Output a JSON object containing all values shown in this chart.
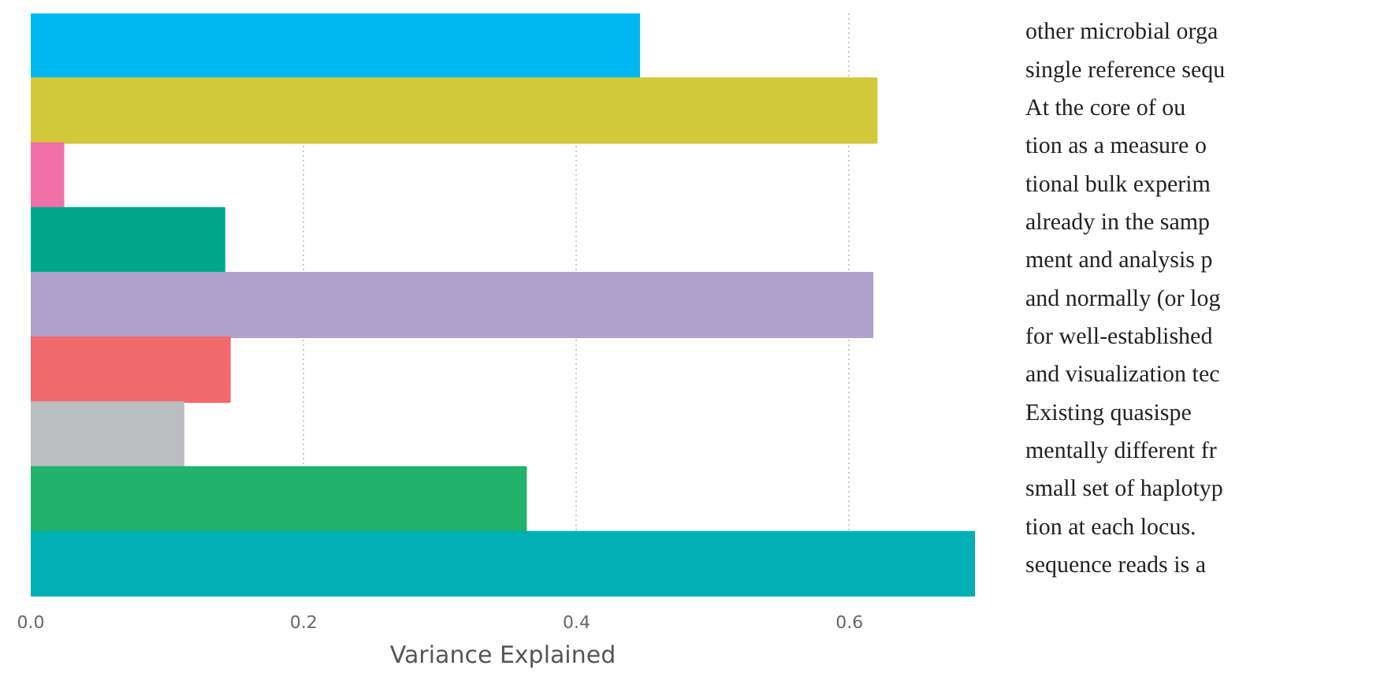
{
  "chart_data": {
    "type": "bar",
    "orientation": "horizontal",
    "xlabel": "Variance Explained",
    "categories": [
      null,
      null,
      null,
      null,
      null,
      null,
      null,
      null,
      null
    ],
    "values": [
      0.446,
      0.62,
      0.024,
      0.142,
      0.617,
      0.146,
      0.112,
      0.363,
      0.692
    ],
    "colors": [
      "#00b8f0",
      "#d2c93a",
      "#f071aa",
      "#00a88b",
      "#afa0cc",
      "#f06a6d",
      "#bbbdc1",
      "#23b26b",
      "#00b0b4"
    ],
    "xlim": [
      0,
      0.692
    ],
    "xticks": [
      {
        "value": 0,
        "label": "0.0"
      },
      0.2,
      0.4,
      0.6
    ],
    "grid": "x",
    "tick_labels": "x",
    "annotations": [
      "other microbial orga",
      "single reference sequ",
      "At the core of ou",
      "tion as a measure o",
      "tional bulk experim",
      "already in the samp",
      "ment and analysis p",
      "and normally (or log",
      "for well-established",
      "and visualization tec",
      "Existing quasispe",
      "mentally different fr",
      "small set of haplotyp",
      "tion at each locus.",
      "sequence reads is a"
    ]
  }
}
